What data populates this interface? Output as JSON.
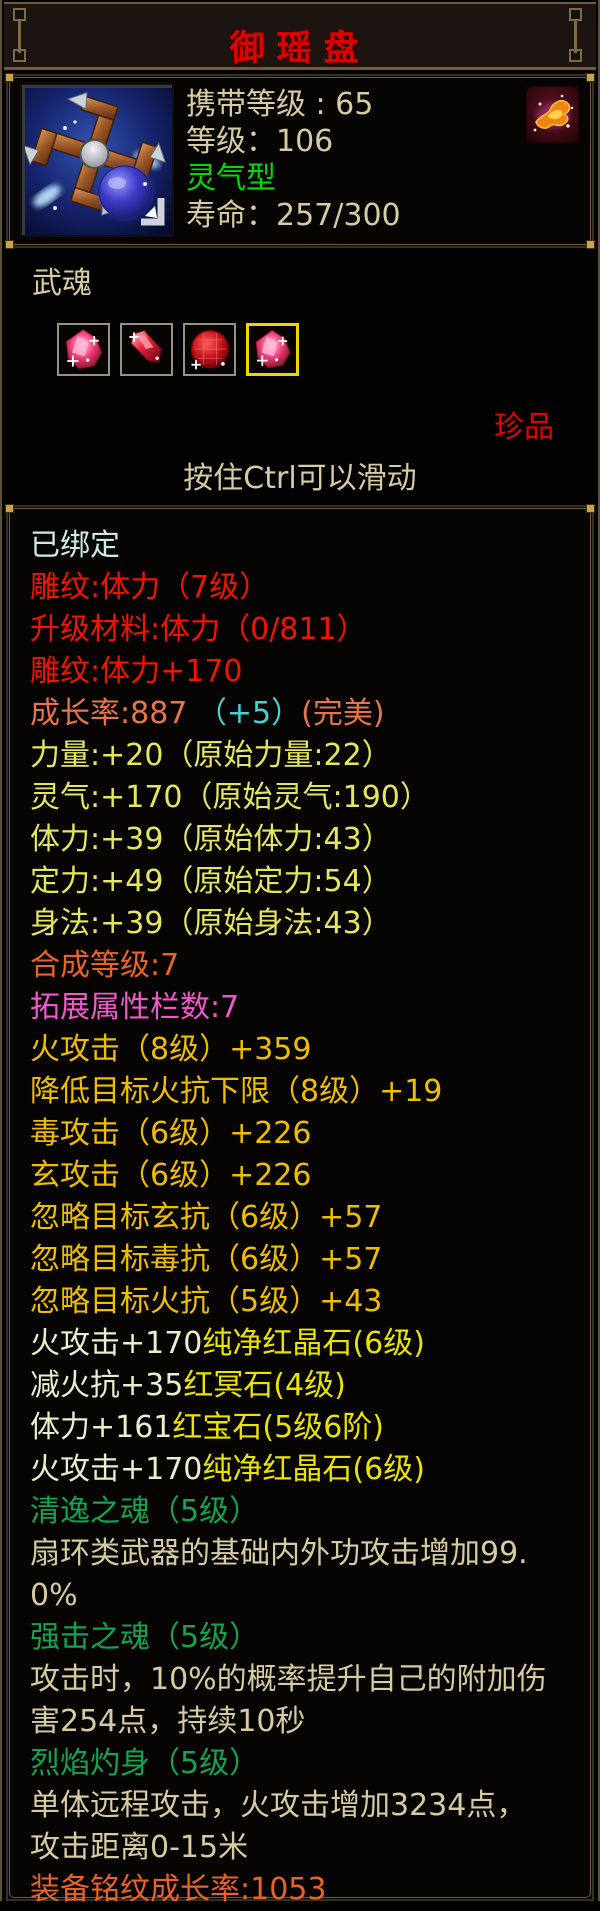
{
  "header": {
    "title": "御瑶盘"
  },
  "info": {
    "carry_level": "携带等级 : 65",
    "level": "等级：106",
    "nature_type": "灵气型",
    "lifespan": "寿命：257/300",
    "nature_icon": "fire-nature-icon",
    "item_icon": "chakram-item-icon"
  },
  "wuhun": {
    "label": "武魂",
    "quality_badge": "珍品",
    "scroll_hint": "按住Ctrl可以滑动",
    "slots": [
      {
        "icon": "gem-red-cluster-icon",
        "shape": "cluster",
        "selected": false
      },
      {
        "icon": "gem-red-shard-icon",
        "shape": "shard",
        "selected": false
      },
      {
        "icon": "gem-red-round-icon",
        "shape": "round",
        "selected": false
      },
      {
        "icon": "gem-red-cluster-icon",
        "shape": "cluster",
        "selected": true
      }
    ]
  },
  "colors": {
    "paleCyan": "#cceae6",
    "red": "#f21400",
    "coral": "#e8744c",
    "cyan": "#44d4d4",
    "paleYellow": "#e6e65e",
    "orange": "#ea6228",
    "magenta": "#f058cc",
    "gold": "#f0be00",
    "yellow": "#eae400",
    "cream": "#eaeecd",
    "green": "#12a44e",
    "tan": "#d7cba2",
    "titleRed": "#e00000",
    "brightGreen": "#00dc00"
  },
  "stats": {
    "lines": [
      {
        "segments": [
          {
            "text": "已绑定",
            "color": "paleCyan"
          }
        ]
      },
      {
        "segments": [
          {
            "text": "雕纹:体力（7级）",
            "color": "red"
          }
        ]
      },
      {
        "segments": [
          {
            "text": "升级材料:体力（0/811）",
            "color": "red"
          }
        ]
      },
      {
        "segments": [
          {
            "text": "雕纹:体力+170",
            "color": "red"
          }
        ]
      },
      {
        "segments": [
          {
            "text": "成长率:887 ",
            "color": "coral"
          },
          {
            "text": "（+5）",
            "color": "cyan"
          },
          {
            "text": "(完美)",
            "color": "coral"
          }
        ]
      },
      {
        "segments": [
          {
            "text": "力量:+20（原始力量:22）",
            "color": "paleYellow"
          }
        ]
      },
      {
        "segments": [
          {
            "text": "灵气:+170（原始灵气:190）",
            "color": "paleYellow"
          }
        ]
      },
      {
        "segments": [
          {
            "text": "体力:+39（原始体力:43）",
            "color": "paleYellow"
          }
        ]
      },
      {
        "segments": [
          {
            "text": "定力:+49（原始定力:54）",
            "color": "paleYellow"
          }
        ]
      },
      {
        "segments": [
          {
            "text": "身法:+39（原始身法:43）",
            "color": "paleYellow"
          }
        ]
      },
      {
        "segments": [
          {
            "text": "合成等级:7",
            "color": "orange"
          }
        ]
      },
      {
        "segments": [
          {
            "text": "拓展属性栏数:7",
            "color": "magenta"
          }
        ]
      },
      {
        "segments": [
          {
            "text": "火攻击（8级）+359",
            "color": "gold"
          }
        ]
      },
      {
        "segments": [
          {
            "text": "降低目标火抗下限（8级）+19",
            "color": "gold"
          }
        ]
      },
      {
        "segments": [
          {
            "text": "毒攻击（6级）+226",
            "color": "gold"
          }
        ]
      },
      {
        "segments": [
          {
            "text": "玄攻击（6级）+226",
            "color": "gold"
          }
        ]
      },
      {
        "segments": [
          {
            "text": "忽略目标玄抗（6级）+57",
            "color": "gold"
          }
        ]
      },
      {
        "segments": [
          {
            "text": "忽略目标毒抗（6级）+57",
            "color": "gold"
          }
        ]
      },
      {
        "segments": [
          {
            "text": "忽略目标火抗（5级）+43",
            "color": "gold"
          }
        ]
      },
      {
        "segments": [
          {
            "text": "火攻击+170",
            "color": "cream"
          },
          {
            "text": "纯净红晶石(6级)",
            "color": "yellow"
          }
        ]
      },
      {
        "segments": [
          {
            "text": "减火抗+35",
            "color": "cream"
          },
          {
            "text": "红冥石(4级)",
            "color": "yellow"
          }
        ]
      },
      {
        "segments": [
          {
            "text": "体力+161",
            "color": "cream"
          },
          {
            "text": "红宝石(5级6阶)",
            "color": "yellow"
          }
        ]
      },
      {
        "segments": [
          {
            "text": "火攻击+170",
            "color": "cream"
          },
          {
            "text": "纯净红晶石(6级)",
            "color": "yellow"
          }
        ]
      },
      {
        "segments": [
          {
            "text": "清逸之魂（5级）",
            "color": "green"
          }
        ]
      },
      {
        "segments": [
          {
            "text": "扇环类武器的基础内外功攻击增加99.",
            "color": "tan"
          }
        ]
      },
      {
        "segments": [
          {
            "text": "0%",
            "color": "tan"
          }
        ]
      },
      {
        "segments": [
          {
            "text": "强击之魂（5级）",
            "color": "green"
          }
        ]
      },
      {
        "segments": [
          {
            "text": "攻击时，10%的概率提升自己的附加伤",
            "color": "tan"
          }
        ]
      },
      {
        "segments": [
          {
            "text": "害254点，持续10秒",
            "color": "tan"
          }
        ]
      },
      {
        "segments": [
          {
            "text": "烈焰灼身（5级）",
            "color": "green"
          }
        ]
      },
      {
        "segments": [
          {
            "text": "单体远程攻击，火攻击增加3234点，",
            "color": "tan"
          }
        ]
      },
      {
        "segments": [
          {
            "text": "攻击距离0-15米",
            "color": "tan"
          }
        ]
      },
      {
        "segments": [
          {
            "text": "装备铭纹成长率:1053",
            "color": "orange"
          }
        ]
      }
    ]
  }
}
